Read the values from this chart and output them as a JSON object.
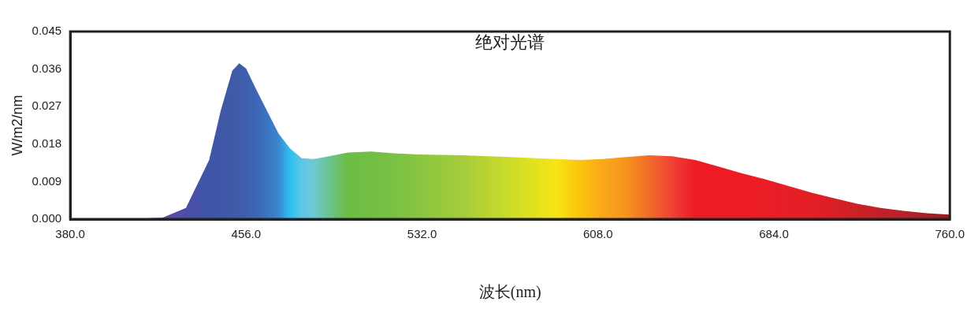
{
  "chart_data": {
    "type": "area",
    "title": "绝对光谱",
    "xlabel": "波长(nm)",
    "ylabel": "W/m2/nm",
    "x": [
      380,
      400,
      410,
      420,
      430,
      440,
      445,
      450,
      453,
      456,
      460,
      465,
      470,
      475,
      480,
      485,
      490,
      500,
      510,
      520,
      530,
      550,
      570,
      590,
      600,
      610,
      620,
      630,
      640,
      650,
      660,
      670,
      680,
      690,
      700,
      710,
      720,
      730,
      740,
      750,
      760
    ],
    "series": [
      {
        "values": [
          0,
          0,
          0.0001,
          0.0004,
          0.0027,
          0.0142,
          0.026,
          0.0356,
          0.0374,
          0.0361,
          0.0315,
          0.026,
          0.0205,
          0.0169,
          0.0146,
          0.0144,
          0.0149,
          0.016,
          0.0162,
          0.0158,
          0.0155,
          0.0153,
          0.0149,
          0.0144,
          0.0142,
          0.0144,
          0.0149,
          0.0153,
          0.0151,
          0.0142,
          0.0126,
          0.011,
          0.0096,
          0.008,
          0.0064,
          0.005,
          0.0037,
          0.0027,
          0.002,
          0.0014,
          0.0011
        ],
        "colors": [
          "#6a4c9c",
          "#6a4c9c",
          "#654ea0",
          "#5a4ea4",
          "#4b4ea8",
          "#3f55a6",
          "#3f57a6",
          "#3f5aa8",
          "#3f5caa",
          "#3e5fae",
          "#3d66b4",
          "#3b74c0",
          "#3a88d0",
          "#2fc0ee",
          "#5cc8e6",
          "#70c9d6",
          "#6cc4a0",
          "#6bbd45",
          "#72be43",
          "#7ac143",
          "#88c540",
          "#a5cc3a",
          "#cddc2a",
          "#f5e614",
          "#fcc30b",
          "#f9a81a",
          "#f7941d",
          "#f26b2a",
          "#ef4136",
          "#ed1c24",
          "#ed1c24",
          "#ed1c24",
          "#ea1d25",
          "#e61e25",
          "#e31e24",
          "#d81f26",
          "#cc2027",
          "#c22128",
          "#b8222a",
          "#a81f25",
          "#9b1b1f"
        ]
      }
    ],
    "xlim": [
      380,
      760
    ],
    "xticks": [
      {
        "value": 380,
        "label": "380.0"
      },
      {
        "value": 456,
        "label": "456.0"
      },
      {
        "value": 532,
        "label": "532.0"
      },
      {
        "value": 608,
        "label": "608.0"
      },
      {
        "value": 684,
        "label": "684.0"
      },
      {
        "value": 760,
        "label": "760.0"
      }
    ],
    "ylim": [
      0,
      0.045
    ],
    "yticks": [
      {
        "value": 0,
        "label": "0.000"
      },
      {
        "value": 0.009,
        "label": "0.009"
      },
      {
        "value": 0.018,
        "label": "0.018"
      },
      {
        "value": 0.027,
        "label": "0.027"
      },
      {
        "value": 0.036,
        "label": "0.036"
      },
      {
        "value": 0.045,
        "label": "0.045"
      }
    ],
    "grid": false,
    "legend": false,
    "marker": "none"
  }
}
